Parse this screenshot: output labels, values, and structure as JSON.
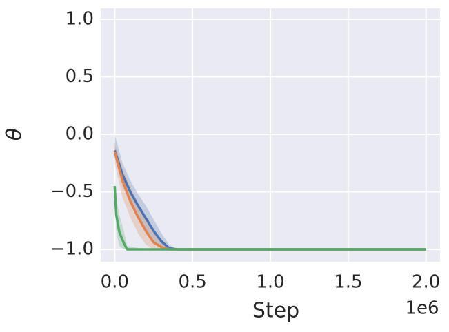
{
  "chart_data": {
    "type": "line",
    "xlabel": "Step",
    "ylabel": "θ",
    "x_offset_label": "1e6",
    "xlim": [
      -90000,
      2090000
    ],
    "xticks": [
      {
        "value": 0,
        "label": "0.0"
      },
      {
        "value": 500000,
        "label": "0.5"
      },
      {
        "value": 1000000,
        "label": "1.0"
      },
      {
        "value": 1500000,
        "label": "1.5"
      },
      {
        "value": 2000000,
        "label": "2.0"
      }
    ],
    "ylim": [
      -1.108,
      1.096
    ],
    "yticks": [
      {
        "value": -1.0,
        "label": "−1.0"
      },
      {
        "value": -0.5,
        "label": "−0.5"
      },
      {
        "value": 0.0,
        "label": "0.0"
      },
      {
        "value": 0.5,
        "label": "0.5"
      },
      {
        "value": 1.0,
        "label": "1.0"
      }
    ],
    "grid": true,
    "background": "#eaeaf2",
    "series": [
      {
        "color": "#4c72b0",
        "x": [
          0,
          50000,
          100000,
          150000,
          200000,
          250000,
          300000,
          350000,
          400000,
          1000000,
          2000000
        ],
        "values": [
          -0.14,
          -0.35,
          -0.5,
          -0.62,
          -0.73,
          -0.84,
          -0.93,
          -0.99,
          -1.0,
          -1.0,
          -1.0
        ],
        "lower": [
          -0.2,
          -0.45,
          -0.6,
          -0.72,
          -0.84,
          -0.93,
          -0.99,
          -1.0,
          -1.0,
          -1.0,
          -1.0
        ],
        "upper": [
          0.0,
          -0.25,
          -0.4,
          -0.52,
          -0.62,
          -0.74,
          -0.86,
          -0.96,
          -1.0,
          -1.0,
          -1.0
        ]
      },
      {
        "color": "#dd8452",
        "x": [
          0,
          50000,
          100000,
          150000,
          200000,
          250000,
          300000,
          350000,
          400000,
          1000000,
          2000000
        ],
        "values": [
          -0.15,
          -0.4,
          -0.58,
          -0.72,
          -0.84,
          -0.94,
          -0.98,
          -1.0,
          -1.0,
          -1.0,
          -1.0
        ],
        "lower": [
          -0.25,
          -0.55,
          -0.72,
          -0.86,
          -0.96,
          -1.0,
          -1.0,
          -1.0,
          -1.0,
          -1.0,
          -1.0
        ],
        "upper": [
          -0.08,
          -0.3,
          -0.46,
          -0.6,
          -0.72,
          -0.86,
          -0.94,
          -0.99,
          -1.0,
          -1.0,
          -1.0
        ]
      },
      {
        "color": "#55a868",
        "x": [
          0,
          10000,
          30000,
          60000,
          80000,
          200000,
          500000,
          1000000,
          2000000
        ],
        "values": [
          -0.45,
          -0.7,
          -0.85,
          -0.95,
          -1.0,
          -1.0,
          -1.0,
          -1.0,
          -1.0
        ],
        "lower": [
          -0.55,
          -0.85,
          -0.97,
          -1.0,
          -1.0,
          -1.0,
          -1.0,
          -1.0,
          -1.0
        ],
        "upper": [
          -0.4,
          -0.55,
          -0.7,
          -0.85,
          -0.97,
          -1.0,
          -1.0,
          -1.0,
          -1.0
        ]
      }
    ]
  }
}
